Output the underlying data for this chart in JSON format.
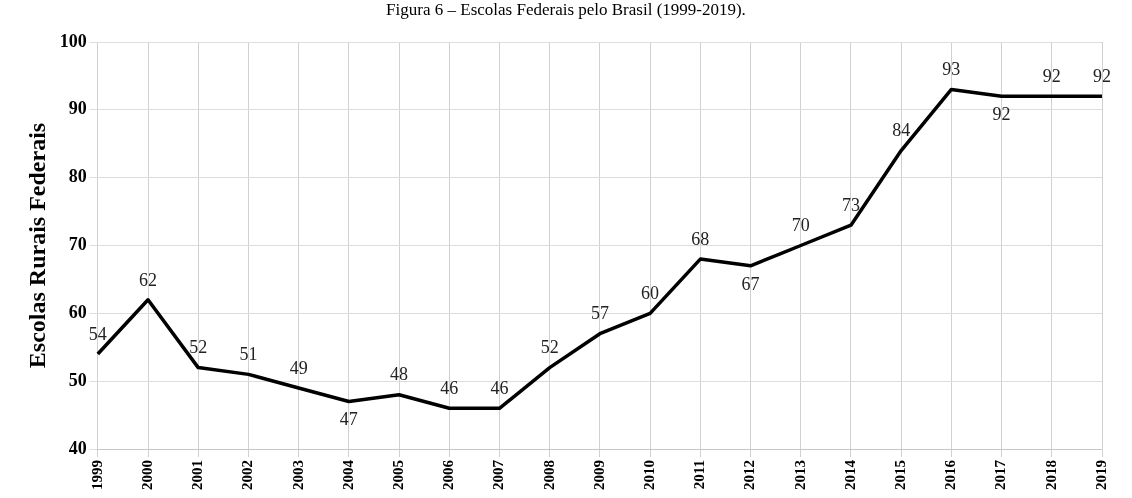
{
  "chart_data": {
    "type": "line",
    "title": "Figura 6 – Escolas Federais pelo Brasil (1999-2019).",
    "ylabel": "Escolas Rurais Federais",
    "categories": [
      "1999",
      "2000",
      "2001",
      "2002",
      "2003",
      "2004",
      "2005",
      "2006",
      "2007",
      "2008",
      "2009",
      "2010",
      "2011",
      "2012",
      "2013",
      "2014",
      "2015",
      "2016",
      "2017",
      "2018",
      "2019"
    ],
    "series": [
      {
        "color": "#000000",
        "values": [
          54,
          62,
          52,
          51,
          49,
          47,
          48,
          46,
          46,
          52,
          57,
          60,
          68,
          67,
          70,
          73,
          84,
          93,
          92,
          92,
          92
        ]
      }
    ],
    "ylim": [
      40,
      100
    ],
    "yticks": [
      40,
      50,
      60,
      70,
      80,
      90,
      100
    ],
    "grid": true,
    "data_labels": true,
    "legend": false,
    "marker": "none",
    "line_style": "solid"
  }
}
